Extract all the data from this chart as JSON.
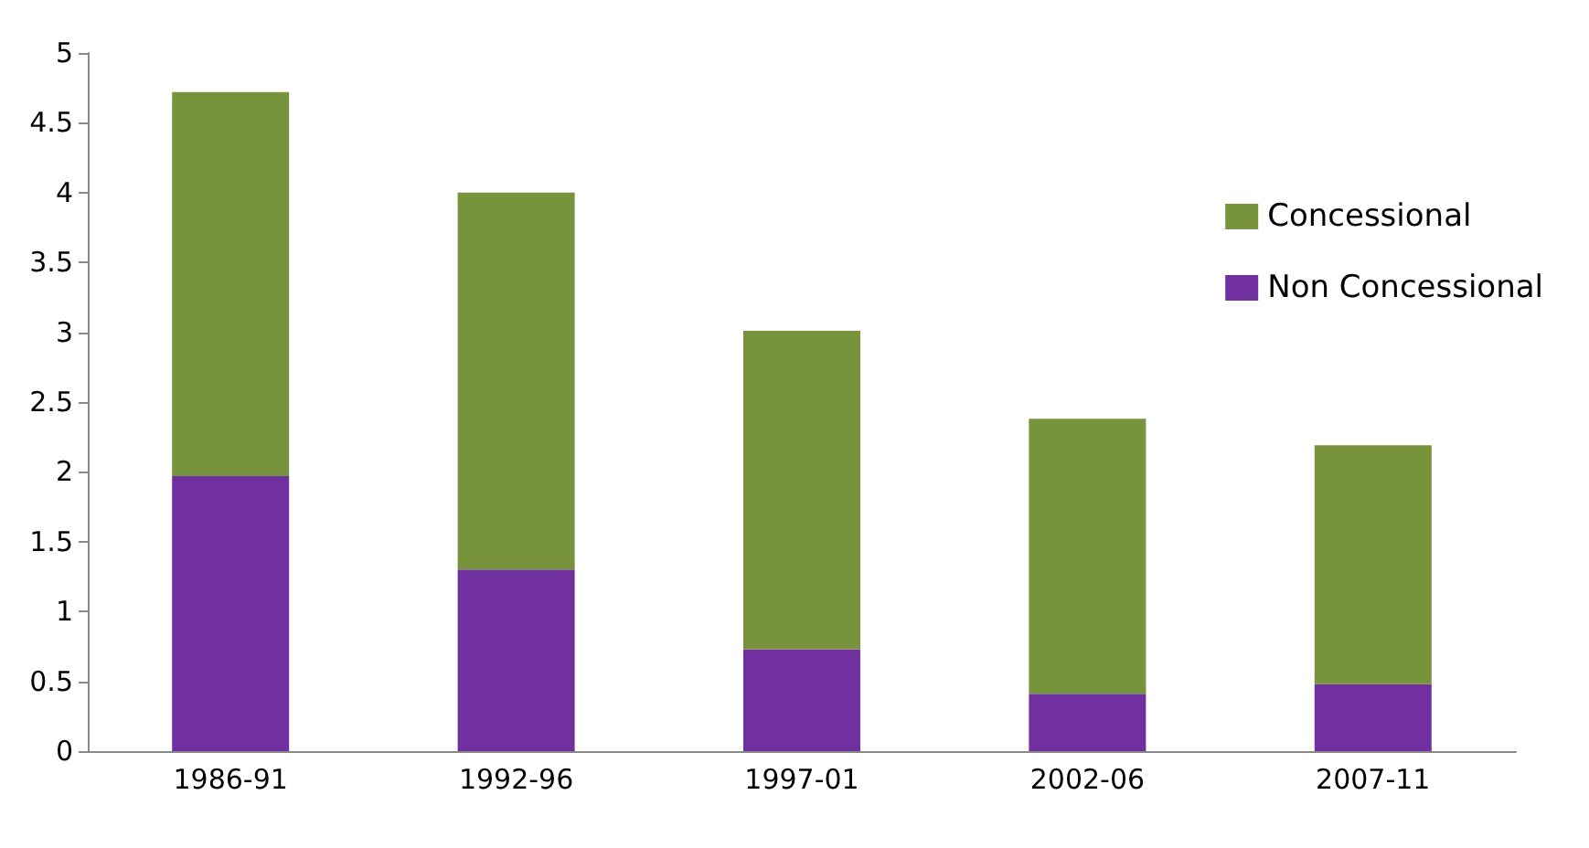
{
  "chart_data": {
    "type": "bar",
    "stacked": true,
    "categories": [
      "1986-91",
      "1992-96",
      "1997-01",
      "2002-06",
      "2007-11"
    ],
    "series": [
      {
        "name": "Non Concessional",
        "color": "#7030a0",
        "values": [
          1.97,
          1.3,
          0.73,
          0.41,
          0.48
        ]
      },
      {
        "name": "Concessional",
        "color": "#77933c",
        "values": [
          2.75,
          2.7,
          2.28,
          1.97,
          1.71
        ]
      }
    ],
    "ylim": [
      0,
      5
    ],
    "yticks": [
      0,
      0.5,
      1,
      1.5,
      2,
      2.5,
      3,
      3.5,
      4,
      4.5,
      5
    ],
    "grid": false,
    "legend": "right"
  }
}
